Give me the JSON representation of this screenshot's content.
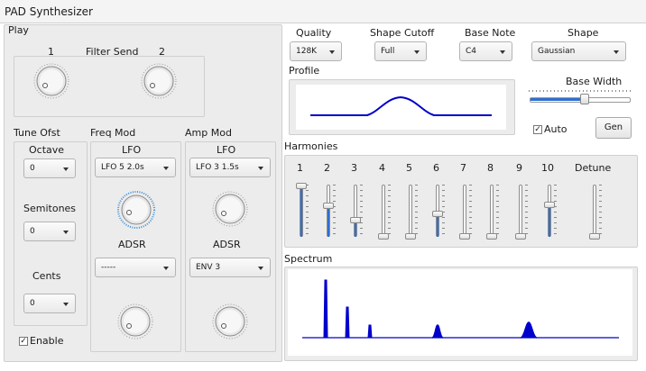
{
  "window": {
    "title": "PAD Synthesizer"
  },
  "play": {
    "title": "Play",
    "filter_send_label": "Filter Send",
    "filter_send_knob1": "1",
    "filter_send_knob2": "2",
    "tune_ofst_label": "Tune Ofst",
    "octave_label": "Octave",
    "octave_value": "0",
    "semitones_label": "Semitones",
    "semitones_value": "0",
    "cents_label": "Cents",
    "cents_value": "0",
    "enable_label": "Enable",
    "enable_checked": true,
    "freq_mod": {
      "label": "Freq Mod",
      "lfo_label": "LFO",
      "lfo_value": "LFO 5 2.0s",
      "adsr_label": "ADSR",
      "adsr_value": "-----"
    },
    "amp_mod": {
      "label": "Amp Mod",
      "lfo_label": "LFO",
      "lfo_value": "LFO 3 1.5s",
      "adsr_label": "ADSR",
      "adsr_value": "ENV 3"
    }
  },
  "quality": {
    "label": "Quality",
    "value": "128K"
  },
  "shape_cutoff": {
    "label": "Shape Cutoff",
    "value": "Full"
  },
  "base_note": {
    "label": "Base Note",
    "value": "C4"
  },
  "shape": {
    "label": "Shape",
    "value": "Gaussian"
  },
  "profile": {
    "label": "Profile"
  },
  "base_width": {
    "label": "Base Width",
    "level": 0.55
  },
  "auto": {
    "label": "Auto",
    "checked": true
  },
  "gen_button": {
    "label": "Gen"
  },
  "harmonics": {
    "label": "Harmonies",
    "detune_label": "Detune",
    "sliders": [
      {
        "label": "1",
        "level": 1.0
      },
      {
        "label": "2",
        "level": 0.6
      },
      {
        "label": "3",
        "level": 0.33
      },
      {
        "label": "4",
        "level": 0.0
      },
      {
        "label": "5",
        "level": 0.0
      },
      {
        "label": "6",
        "level": 0.45
      },
      {
        "label": "7",
        "level": 0.0
      },
      {
        "label": "8",
        "level": 0.0
      },
      {
        "label": "9",
        "level": 0.0
      },
      {
        "label": "10",
        "level": 0.62
      }
    ],
    "detune_level": 0.0
  },
  "spectrum": {
    "label": "Spectrum"
  },
  "colors": {
    "accent": "#2e6fd0",
    "plot_line": "#0000cc",
    "panel": "#ececec"
  }
}
